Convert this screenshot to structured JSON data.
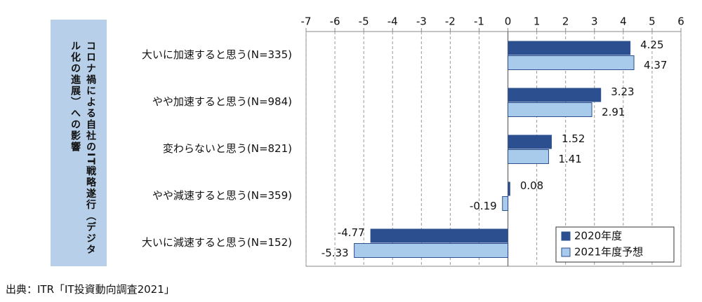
{
  "chart_data": {
    "type": "bar",
    "orientation": "horizontal",
    "y_label": "コロナ禍による自社のIT戦略遂行（デジタル化の進展）への影響",
    "categories": [
      "大いに加速すると思う(N=335)",
      "やや加速すると思う(N=984)",
      "変わらないと思う(N=821)",
      "やや減速すると思う(N=359)",
      "大いに減速すると思う(N=152)"
    ],
    "series": [
      {
        "name": "2020年度",
        "color": "#2b4f8f",
        "values": [
          4.25,
          3.23,
          1.52,
          0.08,
          -4.77
        ]
      },
      {
        "name": "2021年度予想",
        "color": "#a9cbeb",
        "values": [
          4.37,
          2.91,
          1.41,
          -0.19,
          -5.33
        ]
      }
    ],
    "xlim": [
      -7,
      6
    ],
    "xticks": [
      -7,
      -6,
      -5,
      -4,
      -3,
      -2,
      -1,
      0,
      1,
      2,
      3,
      4,
      5,
      6
    ],
    "grid": true,
    "legend": "lower right",
    "source": "出典：ITR「IT投資動向調査2021」"
  }
}
